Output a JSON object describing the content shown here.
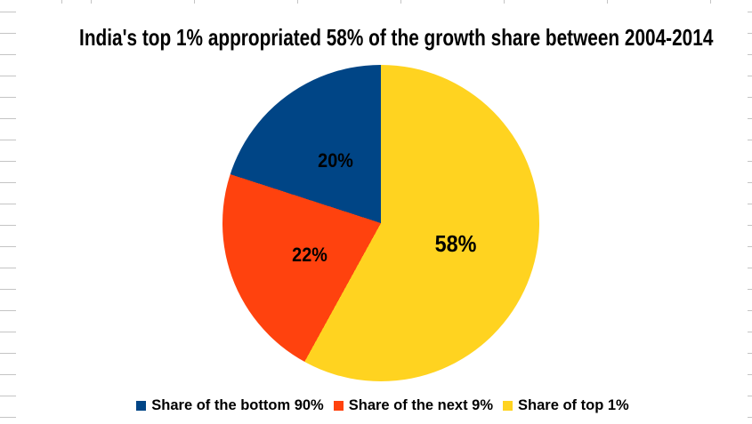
{
  "chart_data": {
    "type": "pie",
    "title": "India's top 1% appropriated 58% of the growth share between 2004-2014",
    "categories": [
      "Share of the bottom 90%",
      "Share of the next 9%",
      "Share of top 1%"
    ],
    "values": [
      20,
      22,
      58
    ],
    "unit": "%",
    "slices": [
      {
        "label": "Share of the bottom 90%",
        "value": 20,
        "data_label": "20%",
        "color": "#004586"
      },
      {
        "label": "Share of the next 9%",
        "value": 22,
        "data_label": "22%",
        "color": "#FF420E"
      },
      {
        "label": "Share of top 1%",
        "value": 58,
        "data_label": "58%",
        "color": "#FFD320"
      }
    ],
    "start_angle_deg": 0,
    "clockwise_order_from_top": [
      "Share of top 1%",
      "Share of the next 9%",
      "Share of the bottom 90%"
    ],
    "legend_position": "bottom",
    "data_labels": "percent inside slices",
    "background": "#ffffff",
    "sheet_gridline_color": "#c4c4c4"
  }
}
